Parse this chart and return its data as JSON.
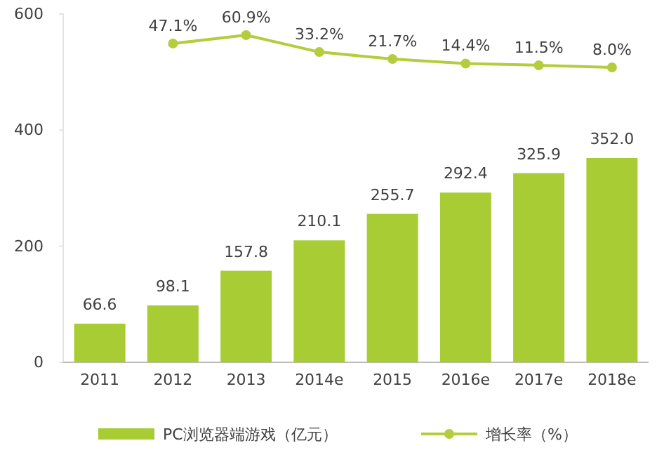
{
  "chart_data": {
    "type": "bar",
    "categories": [
      "2011",
      "2012",
      "2013",
      "2014e",
      "2015",
      "2016e",
      "2017e",
      "2018e"
    ],
    "series": [
      {
        "name": "PC浏览器端游戏（亿元）",
        "color": "#a8cc34",
        "values": [
          66.6,
          98.1,
          157.8,
          210.1,
          255.7,
          292.4,
          325.9,
          352.0
        ],
        "value_labels": [
          "66.6",
          "98.1",
          "157.8",
          "210.1",
          "255.7",
          "292.4",
          "325.9",
          "352.0"
        ]
      },
      {
        "name": "增长率（%）",
        "type": "line",
        "axis": "y2",
        "color": "#b5cc3c",
        "values": [
          null,
          47.1,
          60.9,
          33.2,
          21.7,
          14.4,
          11.5,
          8.0
        ],
        "value_labels": [
          null,
          "47.1%",
          "60.9%",
          "33.2%",
          "21.7%",
          "14.4%",
          "11.5%",
          "8.0%"
        ]
      }
    ],
    "ylim": [
      0,
      600
    ],
    "yticks": [
      0,
      200,
      400,
      600
    ],
    "grid": false,
    "legend": "bottom",
    "marker": "circle",
    "line_style": "solid"
  }
}
